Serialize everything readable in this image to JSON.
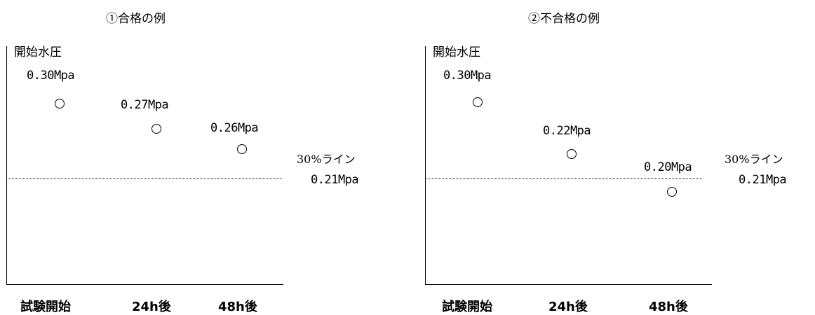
{
  "panel1": {
    "title": "①合格の例",
    "ylabel": "開始水圧",
    "points": [
      "0.30Mpa",
      "0.27Mpa",
      "0.26Mpa"
    ],
    "ref_label": "30%ライン",
    "ref_value": "0.21Mpa",
    "xlabels": [
      "試験開始",
      "24h後",
      "48h後"
    ]
  },
  "panel2": {
    "title": "②不合格の例",
    "ylabel": "開始水圧",
    "points": [
      "0.30Mpa",
      "0.22Mpa",
      "0.20Mpa"
    ],
    "ref_label": "30%ライン",
    "ref_value": "0.21Mpa",
    "xlabels": [
      "試験開始",
      "24h後",
      "48h後"
    ]
  }
}
